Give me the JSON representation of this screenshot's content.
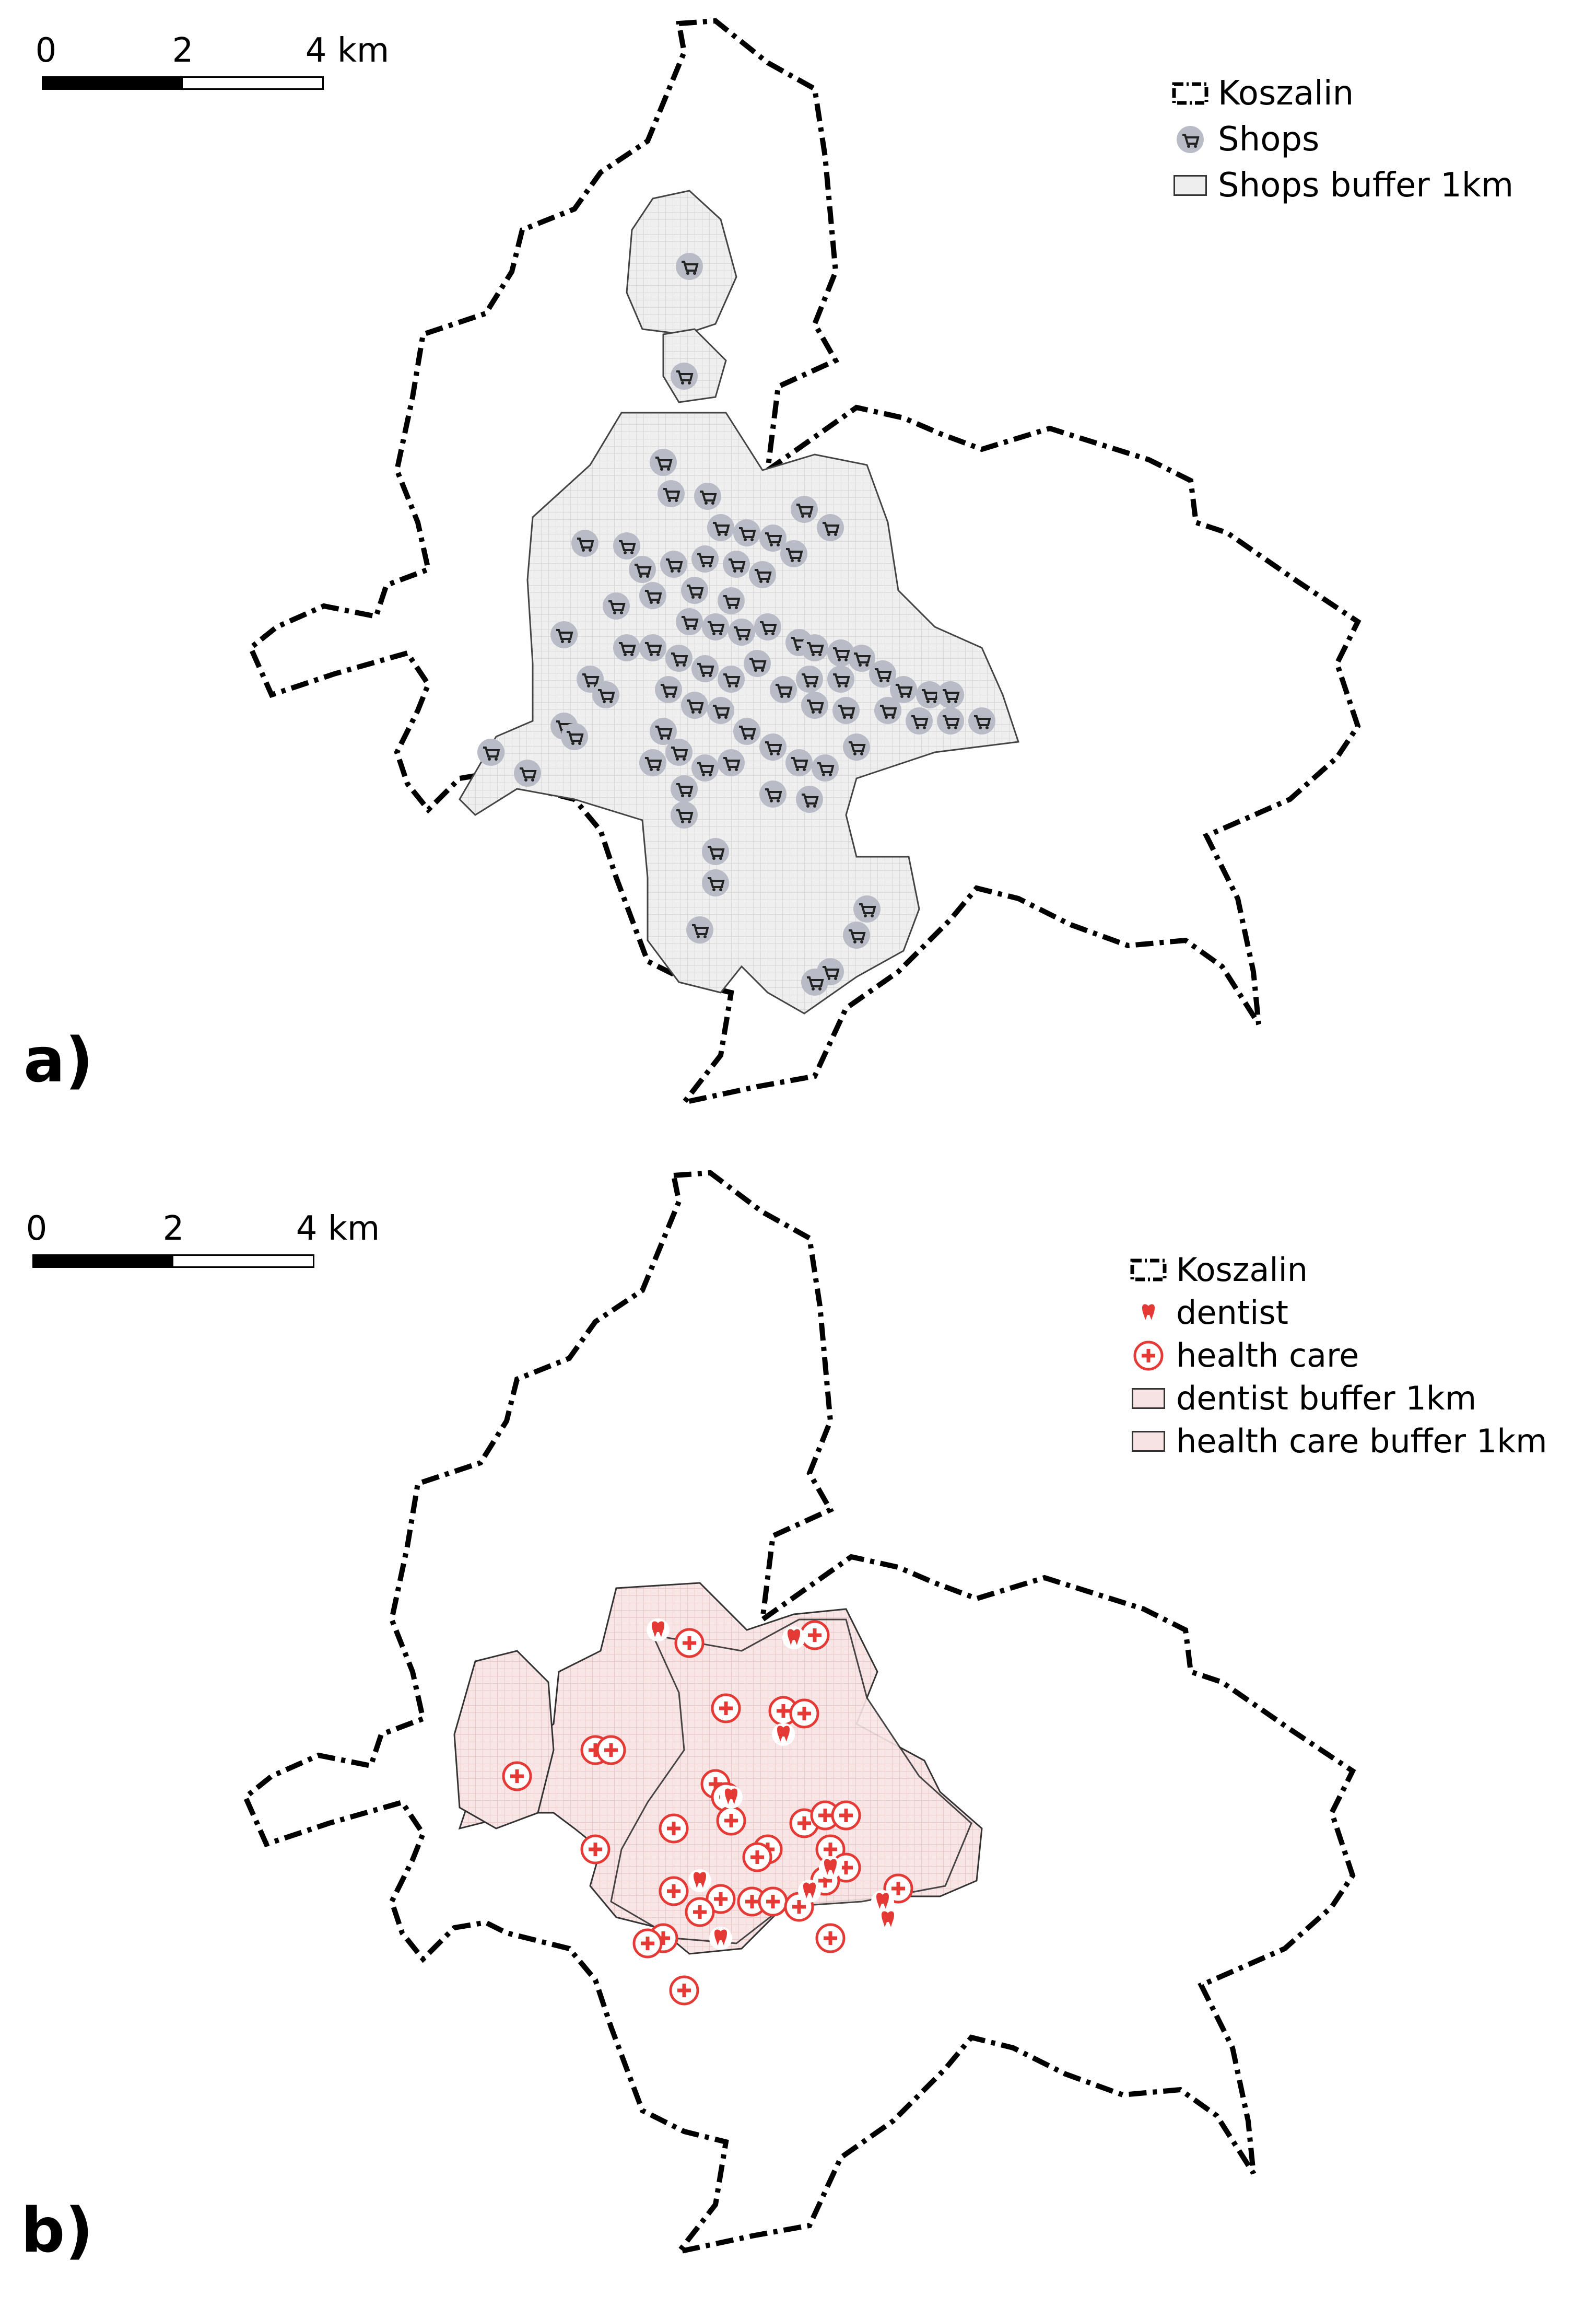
{
  "panel_a": {
    "label": "a)",
    "scalebar": {
      "ticks": [
        "0",
        "2",
        "4 km"
      ]
    },
    "legend": {
      "items": [
        {
          "label": "Koszalin",
          "icon": "dashed-boundary-icon"
        },
        {
          "label": "Shops",
          "icon": "shopping-cart-icon"
        },
        {
          "label": "Shops buffer 1km",
          "icon": "gray-fill-swatch-icon"
        }
      ]
    },
    "colors": {
      "buffer_fill": "#eeeeee",
      "point_fill": "#b9bcc6",
      "boundary": "#000000"
    }
  },
  "panel_b": {
    "label": "b)",
    "scalebar": {
      "ticks": [
        "0",
        "2",
        "4 km"
      ]
    },
    "legend": {
      "items": [
        {
          "label": "Koszalin",
          "icon": "dashed-boundary-icon"
        },
        {
          "label": "dentist",
          "icon": "tooth-icon"
        },
        {
          "label": "health care",
          "icon": "red-cross-icon"
        },
        {
          "label": "dentist buffer 1km",
          "icon": "pink-fill-swatch-icon"
        },
        {
          "label": "health care buffer 1km",
          "icon": "pink-fill-swatch-icon"
        }
      ]
    },
    "colors": {
      "buffer_fill": "#f7e3e3",
      "point_color": "#e53935",
      "boundary": "#000000"
    }
  }
}
